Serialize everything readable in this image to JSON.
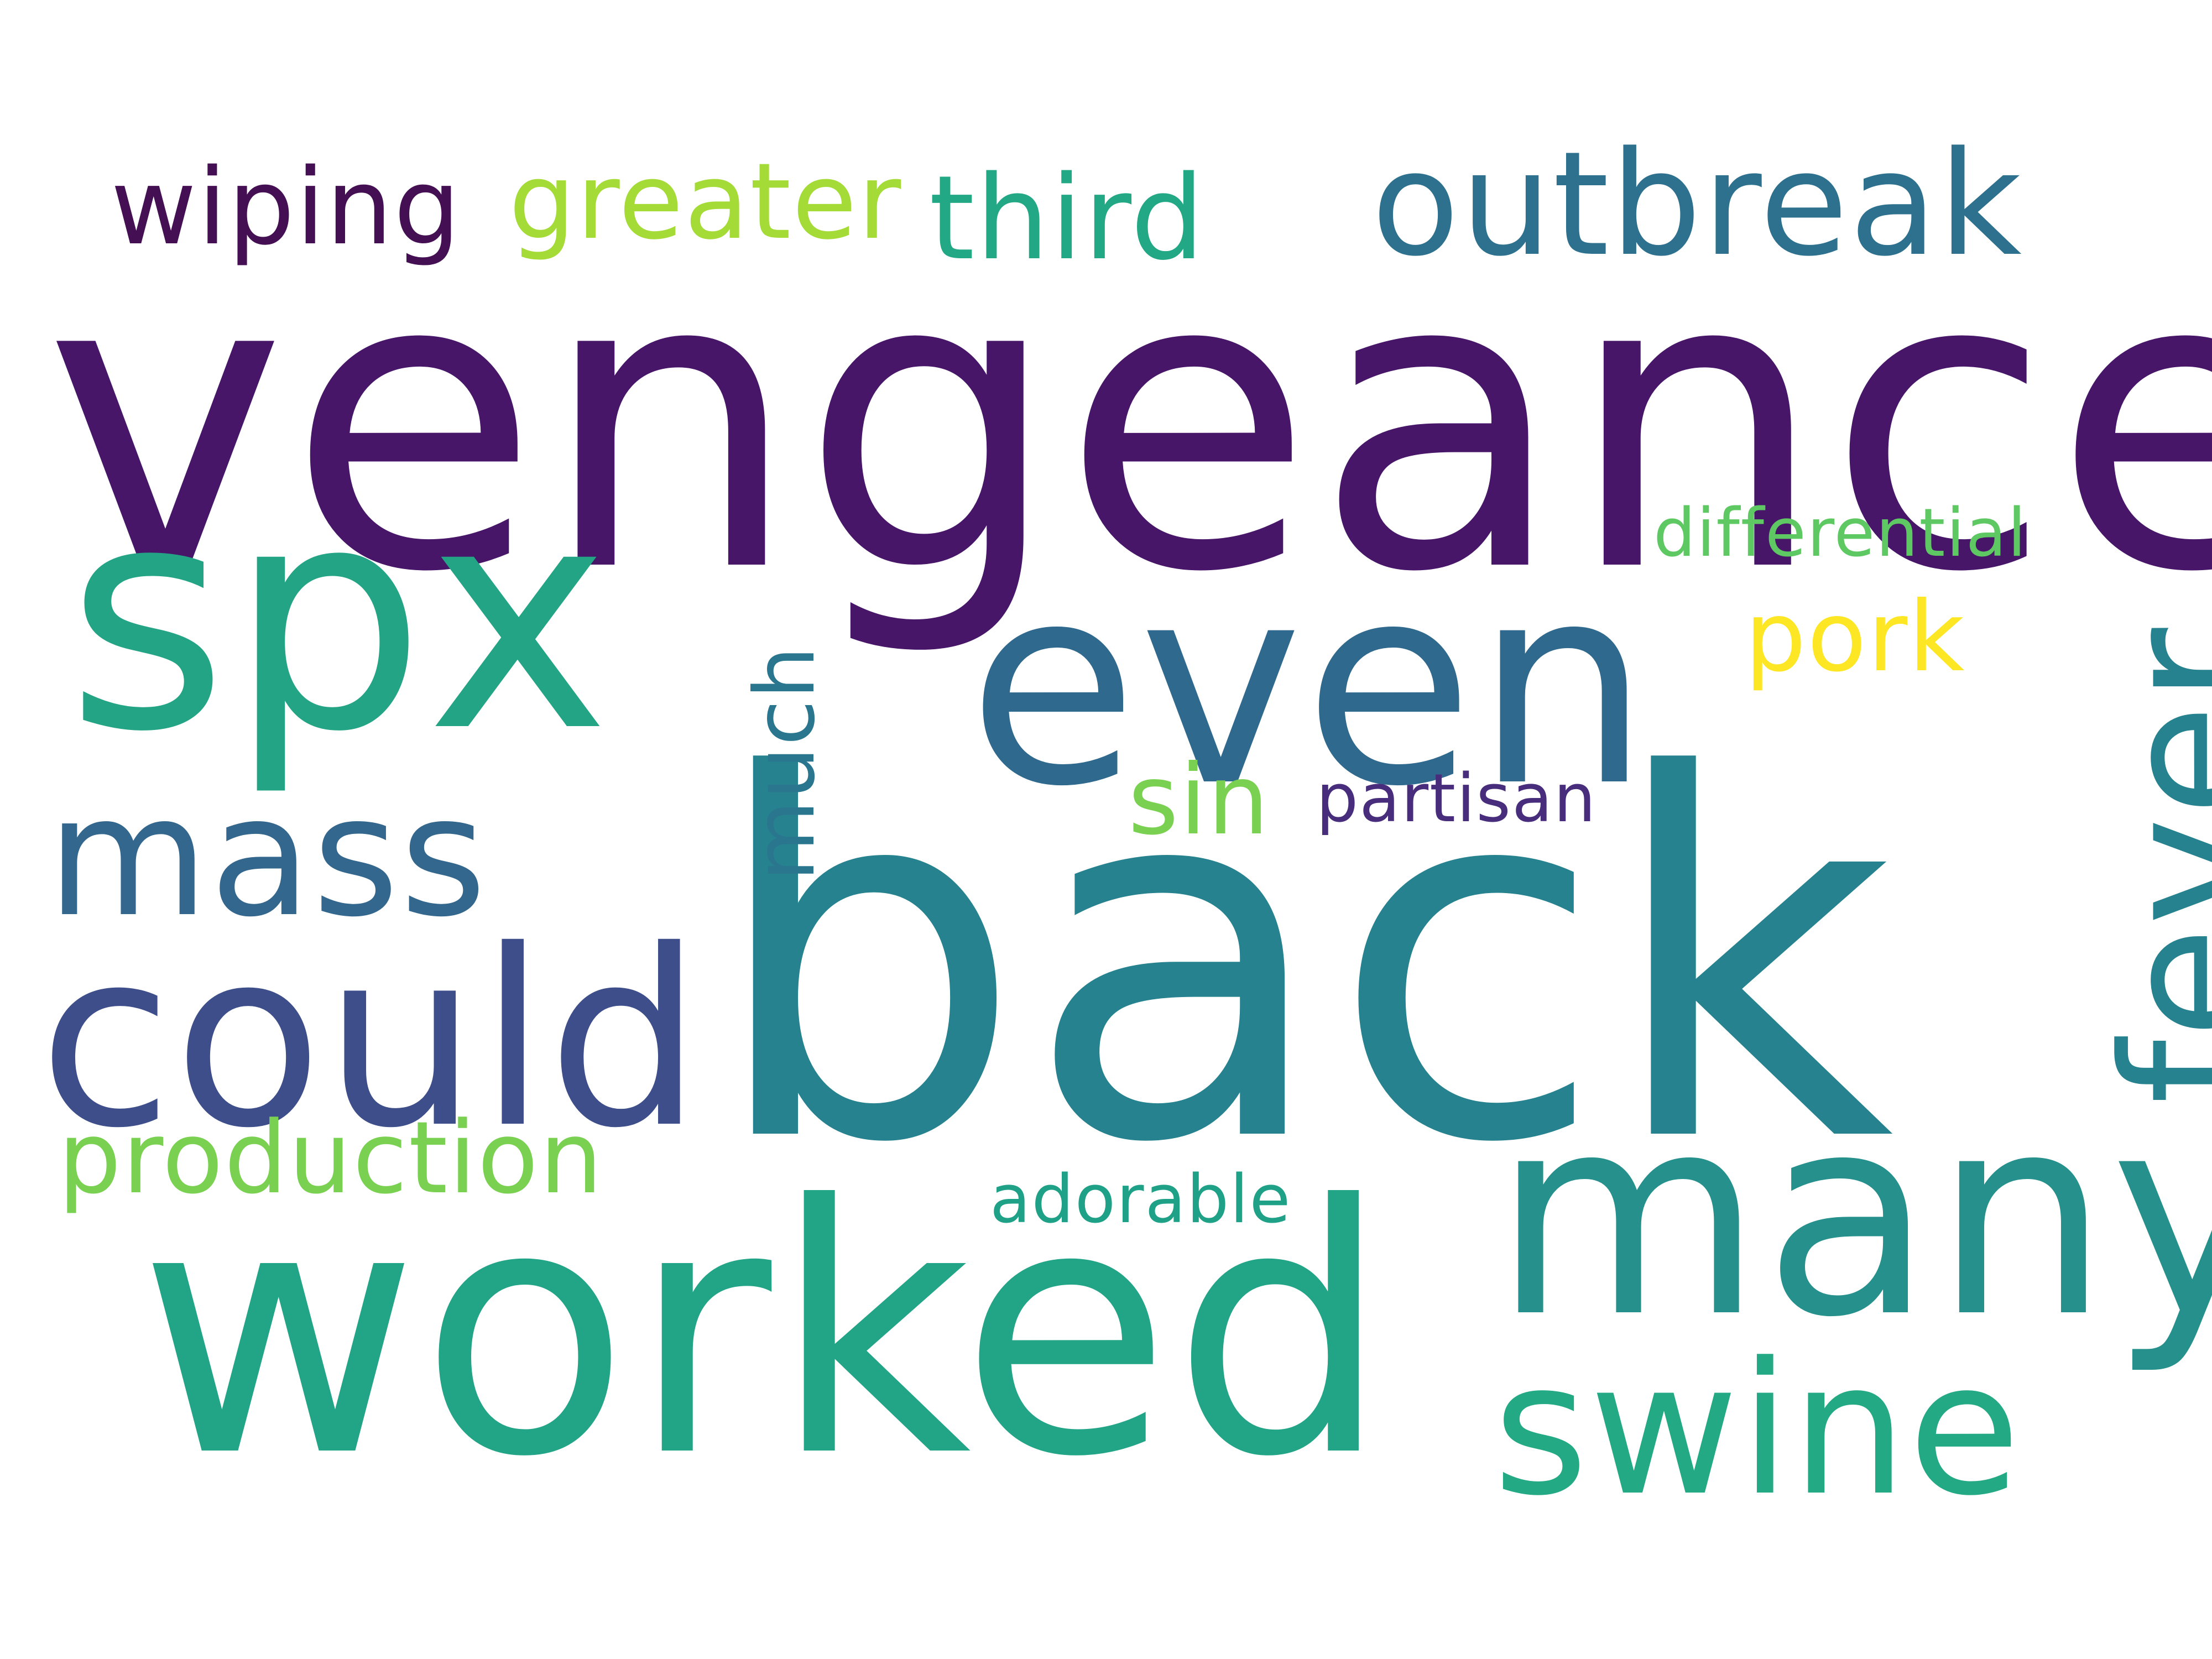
{
  "words": [
    {
      "text": "vengeance",
      "color": "#471669"
    },
    {
      "text": "back",
      "color": "#26828E"
    },
    {
      "text": "worked",
      "color": "#22A486"
    },
    {
      "text": "spx",
      "color": "#23A585"
    },
    {
      "text": "even",
      "color": "#30698E"
    },
    {
      "text": "many",
      "color": "#25908C"
    },
    {
      "text": "could",
      "color": "#3D4E8A"
    },
    {
      "text": "swine",
      "color": "#23A983"
    },
    {
      "text": "mass",
      "color": "#33678D"
    },
    {
      "text": "outbreak",
      "color": "#2D718E"
    },
    {
      "text": "third",
      "color": "#22A884"
    },
    {
      "text": "greater",
      "color": "#A5DB36"
    },
    {
      "text": "wiping",
      "color": "#440F53"
    },
    {
      "text": "production",
      "color": "#7AD151"
    },
    {
      "text": "pork",
      "color": "#FDE725"
    },
    {
      "text": "sin",
      "color": "#7AD151"
    },
    {
      "text": "differential",
      "color": "#5EC962"
    },
    {
      "text": "partisan",
      "color": "#472D7B"
    },
    {
      "text": "adorable",
      "color": "#1FA188"
    },
    {
      "text": "fever",
      "color": "#26828E",
      "orientation": "vertical"
    },
    {
      "text": "much",
      "color": "#2A768E",
      "orientation": "vertical"
    }
  ]
}
